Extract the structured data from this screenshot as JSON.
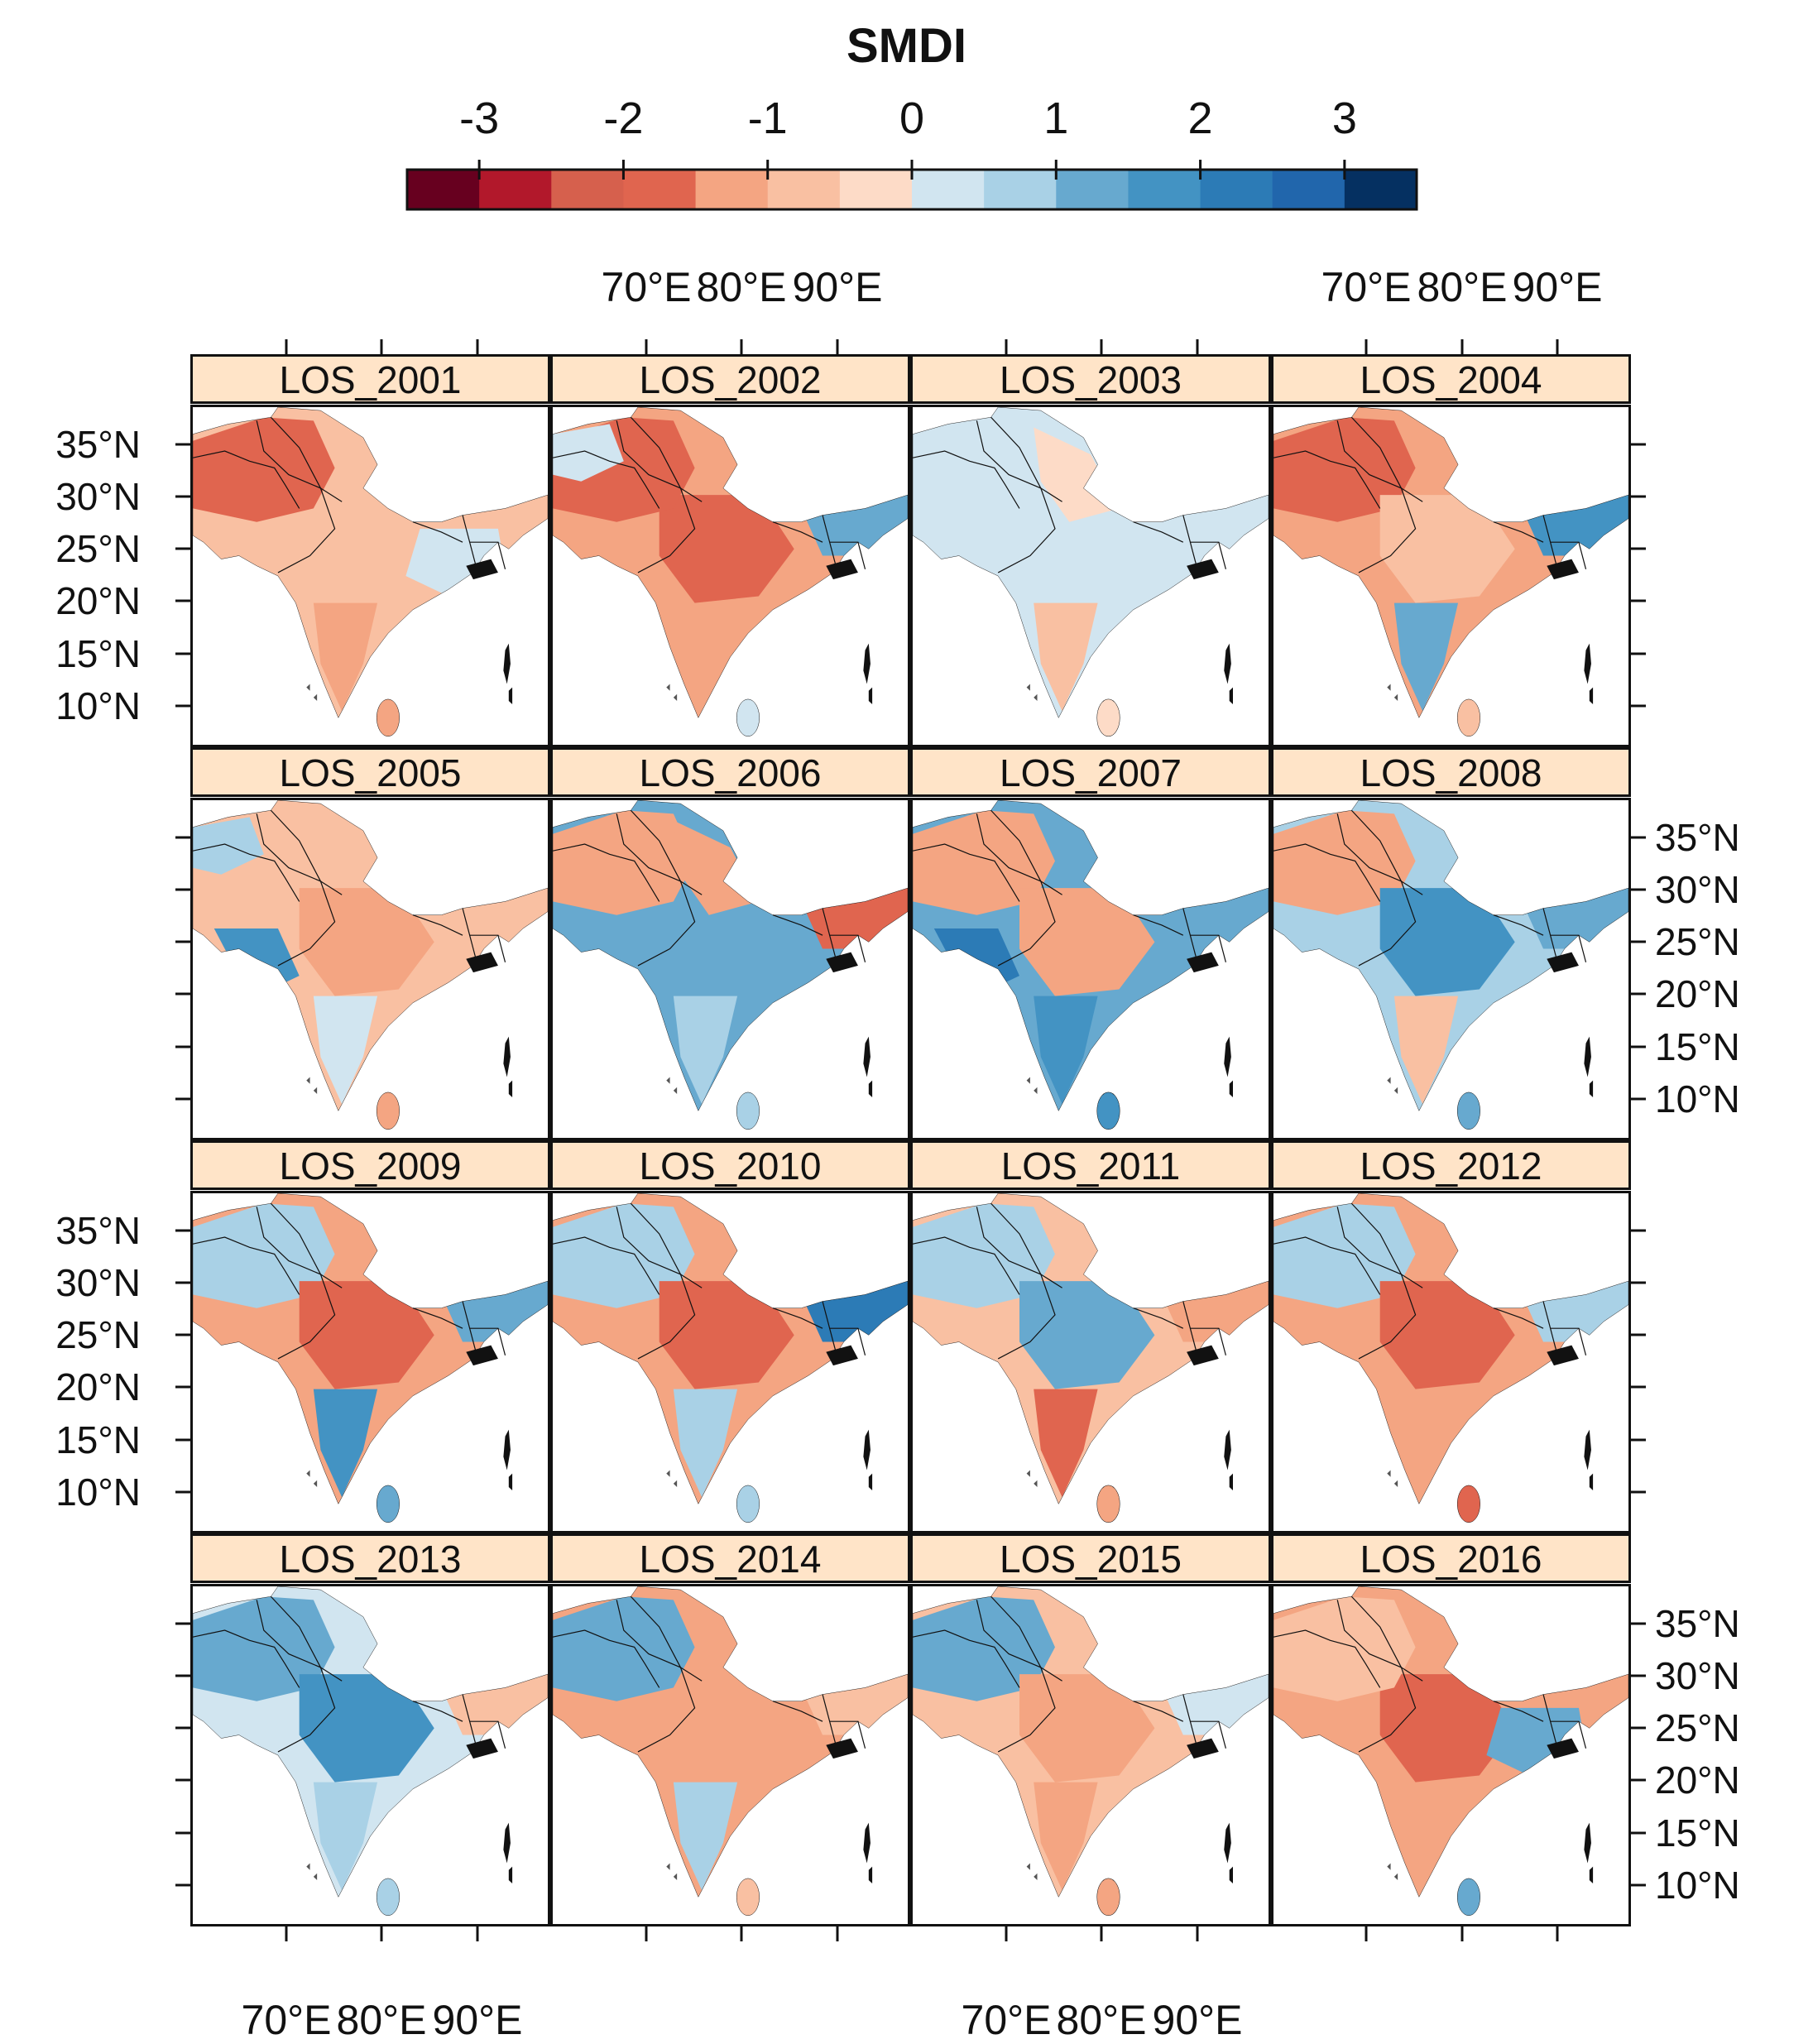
{
  "figure": {
    "colorbar": {
      "title": "SMDI",
      "tick_labels": [
        "-3",
        "-2",
        "-1",
        "0",
        "1",
        "2",
        "3"
      ],
      "range": [
        -3.5,
        3.5
      ],
      "colors": [
        "#67001f",
        "#b2182b",
        "#d6604d",
        "#e0654f",
        "#f4a582",
        "#f9c0a2",
        "#fddbc7",
        "#d1e5f0",
        "#a9d1e6",
        "#67a9cf",
        "#4393c3",
        "#2c7bb6",
        "#2166ac",
        "#053061"
      ]
    },
    "lon_labels": [
      "70°E",
      "80°E",
      "90°E"
    ],
    "lat_labels": [
      "35°N",
      "30°N",
      "25°N",
      "20°N",
      "15°N",
      "10°N"
    ],
    "panels": [
      {
        "label": "LOS_2001",
        "base": "#f9c0a2",
        "patches": [
          {
            "c": "#e0654f",
            "r": "nw"
          },
          {
            "c": "#d1e5f0",
            "r": "east"
          },
          {
            "c": "#f4a582",
            "r": "south"
          }
        ]
      },
      {
        "label": "LOS_2002",
        "base": "#f4a582",
        "patches": [
          {
            "c": "#e0654f",
            "r": "center"
          },
          {
            "c": "#e0654f",
            "r": "nw"
          },
          {
            "c": "#67a9cf",
            "r": "ne"
          },
          {
            "c": "#d1e5f0",
            "r": "far-nw"
          }
        ]
      },
      {
        "label": "LOS_2003",
        "base": "#d1e5f0",
        "patches": [
          {
            "c": "#f9c0a2",
            "r": "south"
          },
          {
            "c": "#fddbc7",
            "r": "north"
          }
        ]
      },
      {
        "label": "LOS_2004",
        "base": "#f4a582",
        "patches": [
          {
            "c": "#e0654f",
            "r": "nw"
          },
          {
            "c": "#4393c3",
            "r": "ne"
          },
          {
            "c": "#67a9cf",
            "r": "south"
          },
          {
            "c": "#f9c0a2",
            "r": "center"
          }
        ]
      },
      {
        "label": "LOS_2005",
        "base": "#f9c0a2",
        "patches": [
          {
            "c": "#a9d1e6",
            "r": "far-nw"
          },
          {
            "c": "#4393c3",
            "r": "west"
          },
          {
            "c": "#d1e5f0",
            "r": "south"
          },
          {
            "c": "#f4a582",
            "r": "center"
          }
        ]
      },
      {
        "label": "LOS_2006",
        "base": "#67a9cf",
        "patches": [
          {
            "c": "#f4a582",
            "r": "nw"
          },
          {
            "c": "#f4a582",
            "r": "north"
          },
          {
            "c": "#e0654f",
            "r": "ne"
          },
          {
            "c": "#a9d1e6",
            "r": "south"
          }
        ]
      },
      {
        "label": "LOS_2007",
        "base": "#67a9cf",
        "patches": [
          {
            "c": "#f4a582",
            "r": "nw"
          },
          {
            "c": "#f4a582",
            "r": "center"
          },
          {
            "c": "#2c7bb6",
            "r": "west"
          },
          {
            "c": "#4393c3",
            "r": "south"
          }
        ]
      },
      {
        "label": "LOS_2008",
        "base": "#a9d1e6",
        "patches": [
          {
            "c": "#f4a582",
            "r": "nw"
          },
          {
            "c": "#4393c3",
            "r": "center"
          },
          {
            "c": "#f9c0a2",
            "r": "south"
          },
          {
            "c": "#67a9cf",
            "r": "ne"
          }
        ]
      },
      {
        "label": "LOS_2009",
        "base": "#f4a582",
        "patches": [
          {
            "c": "#a9d1e6",
            "r": "nw"
          },
          {
            "c": "#e0654f",
            "r": "center"
          },
          {
            "c": "#4393c3",
            "r": "south"
          },
          {
            "c": "#67a9cf",
            "r": "ne"
          }
        ]
      },
      {
        "label": "LOS_2010",
        "base": "#f4a582",
        "patches": [
          {
            "c": "#a9d1e6",
            "r": "nw"
          },
          {
            "c": "#e0654f",
            "r": "center"
          },
          {
            "c": "#2c7bb6",
            "r": "ne"
          },
          {
            "c": "#a9d1e6",
            "r": "south"
          }
        ]
      },
      {
        "label": "LOS_2011",
        "base": "#f9c0a2",
        "patches": [
          {
            "c": "#a9d1e6",
            "r": "nw"
          },
          {
            "c": "#67a9cf",
            "r": "center"
          },
          {
            "c": "#e0654f",
            "r": "south"
          },
          {
            "c": "#f4a582",
            "r": "ne"
          }
        ]
      },
      {
        "label": "LOS_2012",
        "base": "#f4a582",
        "patches": [
          {
            "c": "#a9d1e6",
            "r": "nw"
          },
          {
            "c": "#a9d1e6",
            "r": "ne"
          },
          {
            "c": "#e0654f",
            "r": "center"
          }
        ]
      },
      {
        "label": "LOS_2013",
        "base": "#d1e5f0",
        "patches": [
          {
            "c": "#67a9cf",
            "r": "nw"
          },
          {
            "c": "#4393c3",
            "r": "center"
          },
          {
            "c": "#f9c0a2",
            "r": "ne"
          },
          {
            "c": "#a9d1e6",
            "r": "south"
          }
        ]
      },
      {
        "label": "LOS_2014",
        "base": "#f4a582",
        "patches": [
          {
            "c": "#67a9cf",
            "r": "nw"
          },
          {
            "c": "#a9d1e6",
            "r": "south"
          },
          {
            "c": "#f9c0a2",
            "r": "ne"
          }
        ]
      },
      {
        "label": "LOS_2015",
        "base": "#f9c0a2",
        "patches": [
          {
            "c": "#67a9cf",
            "r": "nw"
          },
          {
            "c": "#f4a582",
            "r": "center"
          },
          {
            "c": "#d1e5f0",
            "r": "ne"
          },
          {
            "c": "#f4a582",
            "r": "south"
          }
        ]
      },
      {
        "label": "LOS_2016",
        "base": "#f4a582",
        "patches": [
          {
            "c": "#e0654f",
            "r": "center"
          },
          {
            "c": "#f9c0a2",
            "r": "nw"
          },
          {
            "c": "#67a9cf",
            "r": "east"
          }
        ]
      }
    ]
  }
}
